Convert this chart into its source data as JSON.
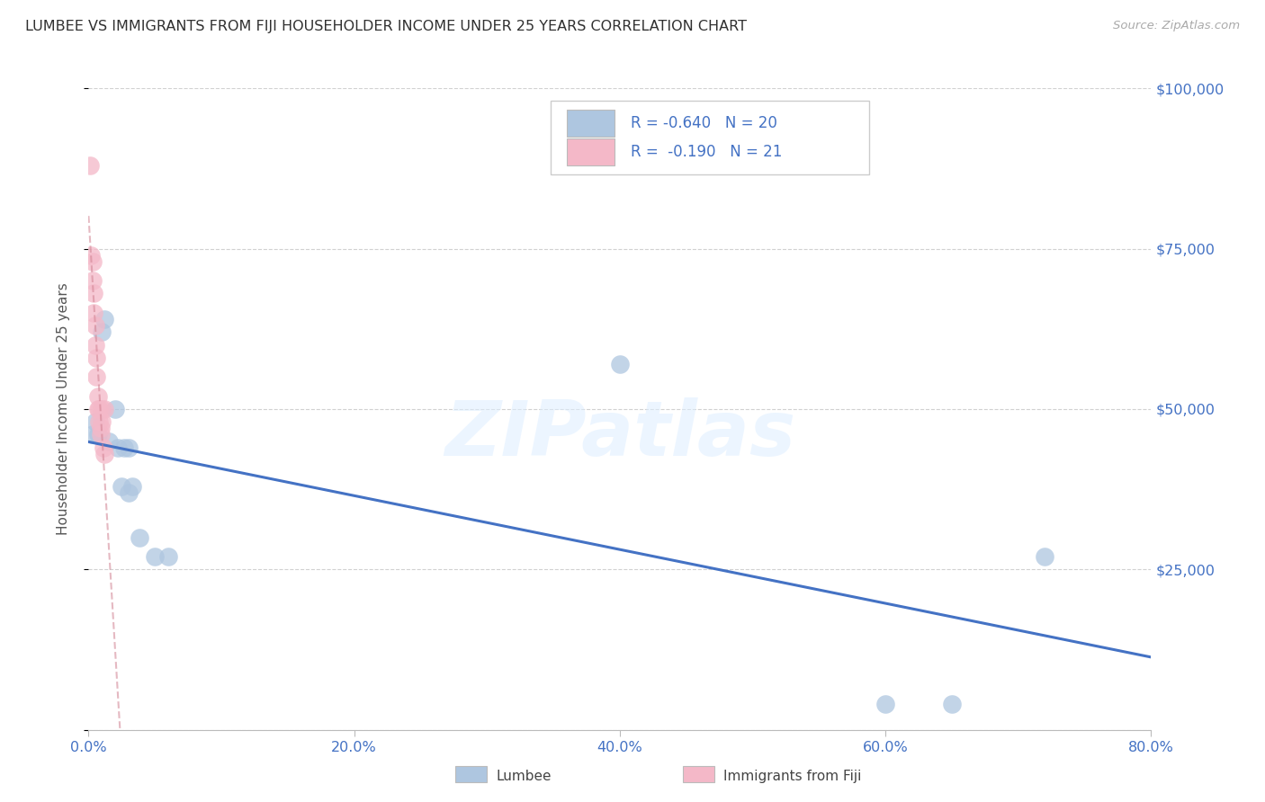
{
  "title": "LUMBEE VS IMMIGRANTS FROM FIJI HOUSEHOLDER INCOME UNDER 25 YEARS CORRELATION CHART",
  "source": "Source: ZipAtlas.com",
  "ylabel": "Householder Income Under 25 years",
  "watermark": "ZIPatlas",
  "lumbee_color": "#aec6e0",
  "lumbee_line_color": "#4472c4",
  "fiji_color": "#f4b8c8",
  "fiji_line_color": "#d08090",
  "R_lumbee": -0.64,
  "N_lumbee": 20,
  "R_fiji": -0.19,
  "N_fiji": 21,
  "lumbee_x": [
    0.003,
    0.005,
    0.007,
    0.01,
    0.012,
    0.015,
    0.02,
    0.022,
    0.025,
    0.027,
    0.03,
    0.03,
    0.033,
    0.038,
    0.05,
    0.06,
    0.4,
    0.6,
    0.65,
    0.72
  ],
  "lumbee_y": [
    46000,
    48000,
    46000,
    62000,
    64000,
    45000,
    50000,
    44000,
    38000,
    44000,
    37000,
    44000,
    38000,
    30000,
    27000,
    27000,
    57000,
    4000,
    4000,
    27000
  ],
  "fiji_x": [
    0.001,
    0.002,
    0.003,
    0.003,
    0.004,
    0.004,
    0.005,
    0.005,
    0.006,
    0.006,
    0.007,
    0.007,
    0.008,
    0.008,
    0.009,
    0.009,
    0.01,
    0.01,
    0.011,
    0.012,
    0.012
  ],
  "fiji_y": [
    88000,
    74000,
    73000,
    70000,
    68000,
    65000,
    63000,
    60000,
    58000,
    55000,
    52000,
    50000,
    50000,
    48000,
    47000,
    46000,
    50000,
    48000,
    44000,
    43000,
    50000
  ],
  "xlim": [
    0.0,
    0.8
  ],
  "ylim": [
    0,
    100000
  ],
  "yticks": [
    0,
    25000,
    50000,
    75000,
    100000
  ],
  "ytick_labels": [
    "",
    "$25,000",
    "$50,000",
    "$75,000",
    "$100,000"
  ],
  "xticks": [
    0.0,
    0.2,
    0.4,
    0.6,
    0.8
  ],
  "xtick_labels": [
    "0.0%",
    "20.0%",
    "40.0%",
    "60.0%",
    "80.0%"
  ],
  "grid_color": "#cccccc",
  "title_color": "#303030",
  "tick_label_color": "#4472c4",
  "ylabel_color": "#555555",
  "source_color": "#aaaaaa",
  "legend_text_color": "#4472c4",
  "bg_color": "#ffffff"
}
